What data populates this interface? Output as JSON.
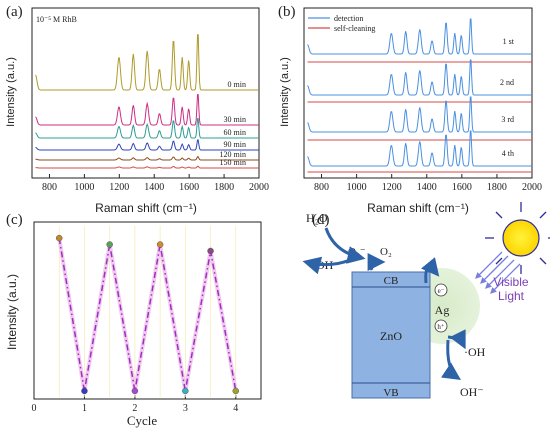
{
  "panel_labels": {
    "a": "(a)",
    "b": "(b)",
    "c": "(c)",
    "d": "(d)"
  },
  "chart_data": [
    {
      "panel": "a",
      "type": "line",
      "annotation": "10⁻⁵ M RhB",
      "xlabel": "Raman shift (cm⁻¹)",
      "ylabel": "Intensity (a.u.)",
      "xlim": [
        700,
        2000
      ],
      "xticks": [
        "800",
        "1000",
        "1200",
        "1400",
        "1600",
        "1800",
        "2000"
      ],
      "peaks": [
        {
          "x": 720,
          "w": 12,
          "r": 0.25
        },
        {
          "x": 1198,
          "w": 12,
          "r": 0.55
        },
        {
          "x": 1280,
          "w": 10,
          "r": 0.6
        },
        {
          "x": 1360,
          "w": 11,
          "r": 0.65
        },
        {
          "x": 1430,
          "w": 10,
          "r": 0.35
        },
        {
          "x": 1510,
          "w": 9,
          "r": 0.85
        },
        {
          "x": 1560,
          "w": 8,
          "r": 0.55
        },
        {
          "x": 1597,
          "w": 8,
          "r": 0.5
        },
        {
          "x": 1650,
          "w": 7,
          "r": 1.0
        }
      ],
      "series": [
        {
          "name": "0 min",
          "color": "#b09a2c",
          "peak_height": 1.0
        },
        {
          "name": "30 min",
          "color": "#cc2f86",
          "peak_height": 0.55
        },
        {
          "name": "60 min",
          "color": "#2e9c95",
          "peak_height": 0.35
        },
        {
          "name": "90 min",
          "color": "#2f46b8",
          "peak_height": 0.18
        },
        {
          "name": "120 min",
          "color": "#8c4a1c",
          "peak_height": 0.06
        },
        {
          "name": "150 min",
          "color": "#d64a4a",
          "peak_height": 0.03
        }
      ]
    },
    {
      "panel": "b",
      "type": "line",
      "xlabel": "Raman shift (cm⁻¹)",
      "ylabel": "Intensity (a.u.)",
      "xlim": [
        700,
        2000
      ],
      "xticks": [
        "800",
        "1000",
        "1200",
        "1400",
        "1600",
        "1800",
        "2000"
      ],
      "legend": [
        {
          "name": "detection",
          "color": "#4a90e2"
        },
        {
          "name": "self-cleaning",
          "color": "#d64a4a"
        }
      ],
      "cycles": [
        "1 st",
        "2 nd",
        "3 rd",
        "4 th"
      ],
      "detection_peak_height": 1.0,
      "self_cleaning_peak_height": 0.0
    },
    {
      "panel": "c",
      "type": "line",
      "xlabel": "Cycle",
      "ylabel": "Intensity (a.u.)",
      "xlim": [
        0,
        4.5
      ],
      "ylim": [
        0,
        1.1
      ],
      "xticks": [
        "0",
        "1",
        "2",
        "3",
        "4"
      ],
      "line_color": "#9b2fc2",
      "points": [
        {
          "x": 0.5,
          "y": 1.0,
          "color": "#c08a2a"
        },
        {
          "x": 1.0,
          "y": 0.05,
          "color": "#3a3ac0"
        },
        {
          "x": 1.5,
          "y": 0.96,
          "color": "#5aa05a"
        },
        {
          "x": 2.0,
          "y": 0.05,
          "color": "#a94ad0"
        },
        {
          "x": 2.5,
          "y": 0.96,
          "color": "#d08a30"
        },
        {
          "x": 3.0,
          "y": 0.05,
          "color": "#3ab0c8"
        },
        {
          "x": 3.5,
          "y": 0.92,
          "color": "#8a4a80"
        },
        {
          "x": 4.0,
          "y": 0.05,
          "color": "#a0a030"
        }
      ]
    }
  ],
  "diagram": {
    "h2o": "H₂O",
    "oh_left": "·OH",
    "o2_minus": "O₂⁻",
    "o2": "O₂",
    "cb": "CB",
    "vb": "VB",
    "zno": "ZnO",
    "ag": "Ag",
    "electron": "e⁻",
    "hole": "h⁺",
    "oh_right": "·OH",
    "oh_minus": "OH⁻",
    "visible": "Visible",
    "light": "Light"
  }
}
